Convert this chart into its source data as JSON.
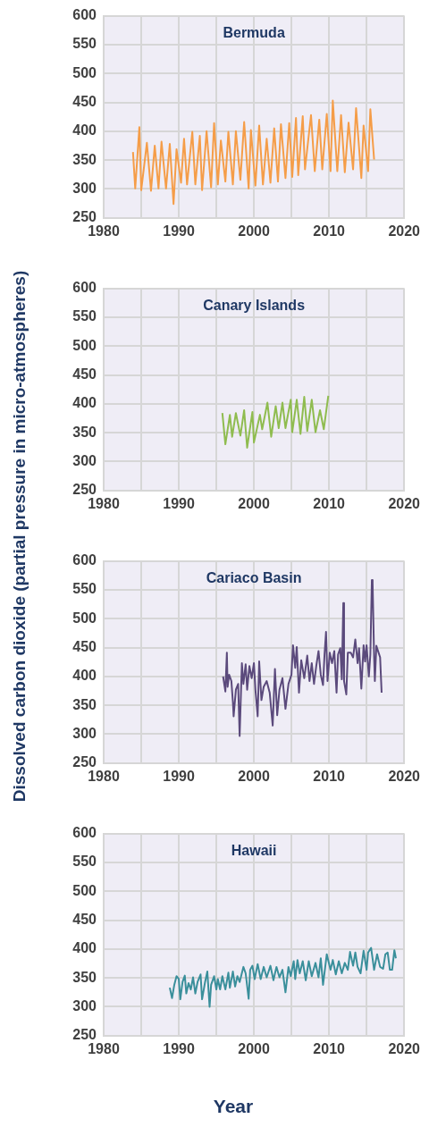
{
  "chart_data": [
    {
      "type": "line",
      "title": "Bermuda",
      "ylabel": "Dissolved carbon dioxide (partial pressure in micro-atmospheres)",
      "color": "#f59d48",
      "grid": true,
      "xlim": [
        1980,
        2020
      ],
      "ylim": [
        250,
        600
      ],
      "xticks": [
        1980,
        {
          "value": 1985,
          "label": null
        },
        1990,
        {
          "value": 1995,
          "label": null
        },
        2000,
        {
          "value": 2005,
          "label": null
        },
        2010,
        {
          "value": 2015,
          "label": null
        },
        2020
      ],
      "yticks": [
        250,
        300,
        350,
        400,
        450,
        500,
        550,
        600
      ],
      "x": [
        1983.9,
        1984.2,
        1984.75,
        1985.0,
        1985.75,
        1986.3,
        1986.8,
        1987.3,
        1987.7,
        1988.3,
        1988.8,
        1989.3,
        1989.7,
        1990.3,
        1990.7,
        1991.1,
        1991.8,
        1992.2,
        1992.8,
        1993.1,
        1993.7,
        1994.3,
        1994.7,
        1995.2,
        1995.6,
        1996.2,
        1996.6,
        1997.2,
        1997.6,
        1998.2,
        1998.7,
        1999.3,
        1999.6,
        2000.2,
        2000.7,
        2001.2,
        2001.7,
        2002.2,
        2002.7,
        2003.2,
        2003.6,
        2004.2,
        2004.7,
        2005.1,
        2005.6,
        2005.9,
        2006.5,
        2006.8,
        2007.6,
        2008.1,
        2008.7,
        2009.1,
        2009.7,
        2010.2,
        2010.5,
        2011.1,
        2011.6,
        2012.1,
        2012.6,
        2013.2,
        2013.6,
        2014.3,
        2014.6,
        2015.2,
        2015.5,
        2016.0
      ],
      "values": [
        364,
        301,
        407,
        298,
        380,
        297,
        375,
        301,
        382,
        301,
        378,
        274,
        369,
        311,
        387,
        308,
        399,
        308,
        392,
        298,
        400,
        303,
        414,
        308,
        384,
        313,
        399,
        308,
        400,
        316,
        416,
        301,
        402,
        306,
        410,
        308,
        387,
        311,
        405,
        313,
        412,
        319,
        414,
        321,
        423,
        324,
        426,
        334,
        428,
        331,
        420,
        334,
        430,
        331,
        453,
        331,
        428,
        329,
        415,
        334,
        440,
        319,
        410,
        331,
        438,
        351
      ]
    },
    {
      "type": "line",
      "title": "Canary Islands",
      "color": "#8fbc4f",
      "grid": true,
      "xlim": [
        1980,
        2020
      ],
      "ylim": [
        250,
        600
      ],
      "xticks": [
        1980,
        {
          "value": 1985,
          "label": null
        },
        1990,
        {
          "value": 1995,
          "label": null
        },
        2000,
        {
          "value": 2005,
          "label": null
        },
        2010,
        {
          "value": 2015,
          "label": null
        },
        2020
      ],
      "yticks": [
        250,
        300,
        350,
        400,
        450,
        500,
        550,
        600
      ],
      "x": [
        1995.8,
        1996.2,
        1996.8,
        1997.1,
        1997.6,
        1998.2,
        1998.7,
        1999.1,
        1999.8,
        2000.0,
        2000.8,
        2001.1,
        2001.8,
        2002.3,
        2002.9,
        2003.3,
        2003.8,
        2004.2,
        2004.9,
        2005.1,
        2005.7,
        2006.2,
        2006.7,
        2007.1,
        2007.7,
        2008.2,
        2008.8,
        2009.3,
        2009.9
      ],
      "values": [
        384,
        330,
        381,
        343,
        384,
        345,
        389,
        324,
        386,
        333,
        381,
        356,
        402,
        343,
        396,
        358,
        402,
        358,
        407,
        351,
        407,
        348,
        412,
        353,
        407,
        351,
        389,
        356,
        414
      ]
    },
    {
      "type": "line",
      "title": "Cariaco Basin",
      "color": "#5b4a7c",
      "grid": true,
      "xlim": [
        1980,
        2020
      ],
      "ylim": [
        250,
        600
      ],
      "xticks": [
        1980,
        {
          "value": 1985,
          "label": null
        },
        1990,
        {
          "value": 1995,
          "label": null
        },
        2000,
        {
          "value": 2005,
          "label": null
        },
        2010,
        {
          "value": 2015,
          "label": null
        },
        2020
      ],
      "yticks": [
        250,
        300,
        350,
        400,
        450,
        500,
        550,
        600
      ],
      "x": [
        1995.9,
        1996.2,
        1996.4,
        1996.5,
        1996.7,
        1997.0,
        1997.2,
        1997.3,
        1997.6,
        1997.9,
        1998.1,
        1998.4,
        1998.6,
        1998.9,
        1999.1,
        1999.4,
        1999.7,
        2000.0,
        2000.2,
        2000.5,
        2000.7,
        2001.0,
        2001.3,
        2001.7,
        2002.1,
        2002.5,
        2002.8,
        2003.1,
        2003.4,
        2003.8,
        2004.2,
        2004.6,
        2005.0,
        2005.2,
        2005.5,
        2005.7,
        2006.0,
        2006.3,
        2006.7,
        2007.1,
        2007.4,
        2007.7,
        2008.0,
        2008.3,
        2008.6,
        2008.9,
        2009.2,
        2009.4,
        2009.6,
        2009.8,
        2010.1,
        2010.4,
        2010.7,
        2011.0,
        2011.2,
        2011.5,
        2011.7,
        2011.9,
        2012.0,
        2012.3,
        2012.5,
        2012.9,
        2013.2,
        2013.5,
        2013.8,
        2014.0,
        2014.3,
        2014.6,
        2014.8,
        2015.0,
        2015.3,
        2015.5,
        2015.7,
        2015.8,
        2016.0,
        2016.1,
        2016.3,
        2016.6,
        2016.8,
        2017.0
      ],
      "values": [
        400,
        374,
        441,
        382,
        403,
        392,
        356,
        331,
        377,
        387,
        297,
        423,
        387,
        421,
        377,
        418,
        397,
        423,
        377,
        331,
        426,
        359,
        382,
        392,
        372,
        315,
        413,
        333,
        377,
        397,
        344,
        387,
        403,
        454,
        415,
        451,
        372,
        428,
        397,
        436,
        392,
        423,
        387,
        418,
        444,
        403,
        385,
        438,
        477,
        392,
        441,
        423,
        444,
        372,
        438,
        449,
        395,
        527,
        392,
        369,
        441,
        441,
        433,
        464,
        423,
        449,
        379,
        454,
        426,
        454,
        400,
        438,
        567,
        562,
        433,
        392,
        453,
        441,
        433,
        372
      ]
    },
    {
      "type": "line",
      "title": "Hawaii",
      "xlabel": "Year",
      "color": "#3a8f9b",
      "grid": true,
      "xlim": [
        1980,
        2020
      ],
      "ylim": [
        250,
        600
      ],
      "xticks": [
        1980,
        {
          "value": 1985,
          "label": null
        },
        1990,
        {
          "value": 1995,
          "label": null
        },
        2000,
        {
          "value": 2005,
          "label": null
        },
        2010,
        {
          "value": 2015,
          "label": null
        },
        2020
      ],
      "yticks": [
        250,
        300,
        350,
        400,
        450,
        500,
        550,
        600
      ],
      "x": [
        1988.8,
        1989.1,
        1989.4,
        1989.7,
        1990.0,
        1990.2,
        1990.5,
        1990.8,
        1991.0,
        1991.3,
        1991.6,
        1991.9,
        1992.2,
        1992.5,
        1992.9,
        1993.1,
        1993.5,
        1993.8,
        1994.1,
        1994.3,
        1994.7,
        1995.0,
        1995.2,
        1995.5,
        1995.8,
        1996.2,
        1996.6,
        1996.8,
        1997.2,
        1997.5,
        1997.8,
        1998.1,
        1998.6,
        1998.9,
        1999.3,
        1999.5,
        1999.8,
        2000.1,
        2000.5,
        2000.9,
        2001.3,
        2001.7,
        2002.2,
        2002.6,
        2003.0,
        2003.4,
        2003.8,
        2004.2,
        2004.6,
        2004.9,
        2005.3,
        2005.5,
        2005.8,
        2006.1,
        2006.5,
        2006.9,
        2007.3,
        2007.7,
        2008.2,
        2008.6,
        2008.9,
        2009.2,
        2009.7,
        2010.2,
        2010.5,
        2010.9,
        2011.3,
        2011.7,
        2012.1,
        2012.5,
        2012.8,
        2013.2,
        2013.5,
        2013.8,
        2014.2,
        2014.6,
        2015.0,
        2015.2,
        2015.6,
        2016.0,
        2016.4,
        2016.8,
        2017.2,
        2017.5,
        2017.8,
        2018.1,
        2018.4,
        2018.7,
        2018.9
      ],
      "values": [
        333,
        315,
        338,
        353,
        348,
        313,
        343,
        354,
        323,
        341,
        330,
        351,
        323,
        343,
        356,
        313,
        343,
        361,
        300,
        338,
        353,
        330,
        348,
        330,
        353,
        330,
        359,
        333,
        361,
        335,
        353,
        343,
        369,
        358,
        314,
        364,
        371,
        348,
        374,
        348,
        369,
        351,
        371,
        346,
        369,
        351,
        364,
        325,
        369,
        353,
        379,
        348,
        381,
        358,
        379,
        346,
        379,
        353,
        376,
        351,
        384,
        338,
        391,
        364,
        381,
        356,
        379,
        358,
        376,
        364,
        395,
        371,
        394,
        369,
        358,
        397,
        364,
        394,
        402,
        364,
        391,
        369,
        366,
        391,
        394,
        364,
        364,
        398,
        384
      ]
    }
  ]
}
